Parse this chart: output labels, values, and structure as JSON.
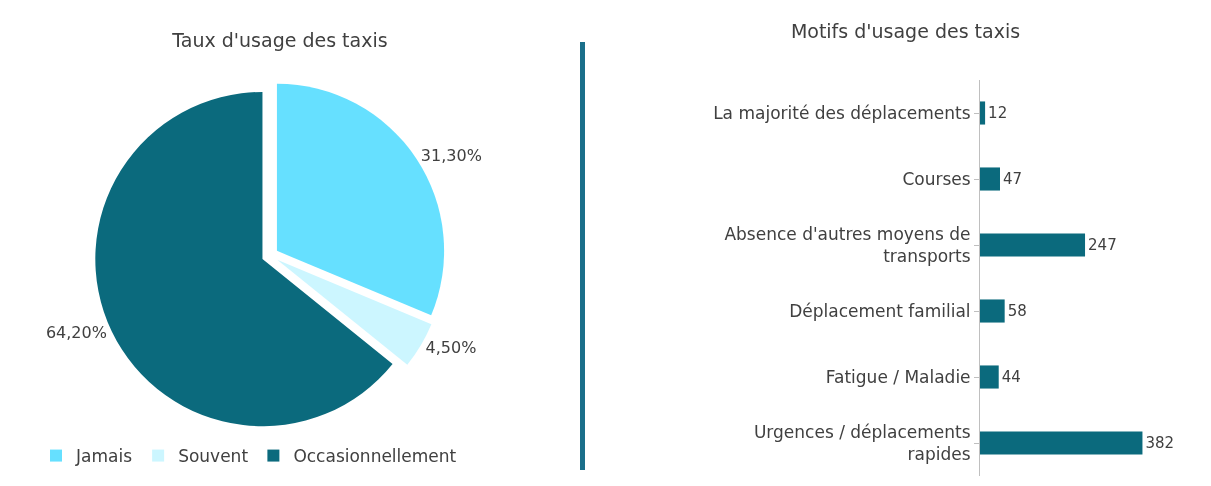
{
  "chart_data": [
    {
      "type": "pie",
      "title": "Taux d'usage des taxis",
      "categories": [
        "Jamais",
        "Souvent",
        "Occasionnellement"
      ],
      "values": [
        31.3,
        4.5,
        64.2
      ],
      "colors": [
        "#66e0ff",
        "#ccf6ff",
        "#0b6a7d"
      ],
      "value_labels": [
        "31,30%",
        "4,50%",
        "64,20%"
      ],
      "legend": "bottom"
    },
    {
      "type": "bar",
      "orientation": "horizontal",
      "title": "Motifs d'usage des taxis",
      "categories": [
        "La majorité des déplacements",
        "Courses",
        "Absence d'autres moyens de transports",
        "Déplacement familial",
        "Fatigue / Maladie",
        "Urgences / déplacements rapides"
      ],
      "values": [
        12,
        47,
        247,
        58,
        44,
        382
      ],
      "color": "#0b6a7d",
      "data_labels": true,
      "legend": false
    }
  ]
}
